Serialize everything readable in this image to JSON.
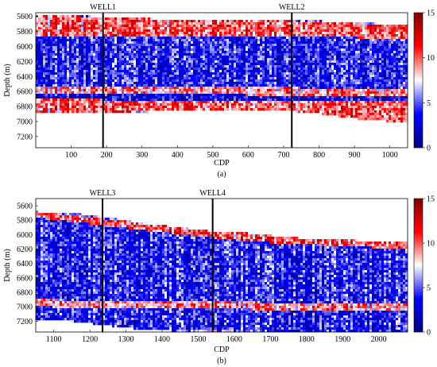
{
  "chart_data": [
    {
      "type": "heatmap",
      "panel_label": "(a)",
      "xlabel": "CDP",
      "ylabel": "Depth (m)",
      "xlim": [
        0,
        1050
      ],
      "ylim": [
        5550,
        7350
      ],
      "y_inverted": true,
      "xticks": [
        100,
        200,
        300,
        400,
        500,
        600,
        700,
        800,
        900,
        1000
      ],
      "yticks": [
        5600,
        5800,
        6000,
        6200,
        6400,
        6600,
        6800,
        7000,
        7200
      ],
      "colorbar": {
        "min": 0,
        "max": 15,
        "ticks": [
          0,
          5,
          10,
          15
        ],
        "colormap": [
          "#000080",
          "#0000ff",
          "#ffffff",
          "#ff0000",
          "#800000"
        ]
      },
      "wells": [
        {
          "name": "WELL1",
          "cdp": 190
        },
        {
          "name": "WELL2",
          "cdp": 723
        }
      ],
      "top_boundary": [
        [
          0,
          5590
        ],
        [
          200,
          5600
        ],
        [
          300,
          5620
        ],
        [
          400,
          5650
        ],
        [
          500,
          5660
        ],
        [
          600,
          5640
        ],
        [
          700,
          5640
        ],
        [
          800,
          5660
        ],
        [
          900,
          5680
        ],
        [
          1000,
          5700
        ],
        [
          1050,
          5720
        ]
      ],
      "bottom_boundary": [
        [
          0,
          6880
        ],
        [
          100,
          6890
        ],
        [
          200,
          6900
        ],
        [
          300,
          6870
        ],
        [
          400,
          6860
        ],
        [
          500,
          6850
        ],
        [
          600,
          6840
        ],
        [
          700,
          6850
        ],
        [
          800,
          6900
        ],
        [
          900,
          6960
        ],
        [
          1000,
          7000
        ],
        [
          1050,
          7020
        ]
      ],
      "layers": [
        {
          "top": [
            [
              0,
              5590
            ],
            [
              500,
              5620
            ],
            [
              1050,
              5720
            ]
          ],
          "bottom": [
            [
              0,
              5860
            ],
            [
              300,
              5860
            ],
            [
              700,
              5860
            ],
            [
              1050,
              5900
            ]
          ],
          "value": 10
        },
        {
          "top": [
            [
              0,
              5860
            ],
            [
              300,
              5860
            ],
            [
              700,
              5860
            ],
            [
              1050,
              5900
            ]
          ],
          "bottom": [
            [
              0,
              6520
            ],
            [
              400,
              6540
            ],
            [
              1050,
              6560
            ]
          ],
          "value": 4
        },
        {
          "top": [
            [
              0,
              6520
            ],
            [
              400,
              6540
            ],
            [
              1050,
              6560
            ]
          ],
          "bottom": [
            [
              0,
              6620
            ],
            [
              400,
              6640
            ],
            [
              1050,
              6660
            ]
          ],
          "value": 9
        },
        {
          "top": [
            [
              0,
              6620
            ],
            [
              400,
              6640
            ],
            [
              1050,
              6660
            ]
          ],
          "bottom": [
            [
              0,
              6700
            ],
            [
              400,
              6720
            ],
            [
              1050,
              6740
            ]
          ],
          "value": 3
        },
        {
          "top": [
            [
              0,
              6700
            ],
            [
              400,
              6720
            ],
            [
              1050,
              6740
            ]
          ],
          "bottom": [
            [
              0,
              6890
            ],
            [
              500,
              6850
            ],
            [
              1050,
              7020
            ]
          ],
          "value": 10
        }
      ]
    },
    {
      "type": "heatmap",
      "panel_label": "(b)",
      "xlabel": "CDP",
      "ylabel": "Depth (m)",
      "xlim": [
        1050,
        2080
      ],
      "ylim": [
        5500,
        7350
      ],
      "y_inverted": true,
      "xticks": [
        1100,
        1200,
        1300,
        1400,
        1500,
        1600,
        1700,
        1800,
        1900,
        2000
      ],
      "yticks": [
        5600,
        5800,
        6000,
        6200,
        6400,
        6600,
        6800,
        7000,
        7200
      ],
      "colorbar": {
        "min": 0,
        "max": 15,
        "ticks": [
          0,
          5,
          10,
          15
        ],
        "colormap": [
          "#000080",
          "#0000ff",
          "#ffffff",
          "#ff0000",
          "#800000"
        ]
      },
      "wells": [
        {
          "name": "WELL3",
          "cdp": 1235
        },
        {
          "name": "WELL4",
          "cdp": 1540
        }
      ],
      "top_boundary": [
        [
          1050,
          5680
        ],
        [
          1150,
          5700
        ],
        [
          1250,
          5760
        ],
        [
          1350,
          5840
        ],
        [
          1450,
          5900
        ],
        [
          1550,
          5960
        ],
        [
          1650,
          5980
        ],
        [
          1750,
          6040
        ],
        [
          1850,
          6060
        ],
        [
          1950,
          6080
        ],
        [
          2080,
          6100
        ]
      ],
      "bottom_boundary": [
        [
          1050,
          7180
        ],
        [
          1150,
          7200
        ],
        [
          1250,
          7260
        ],
        [
          1350,
          7320
        ],
        [
          1450,
          7340
        ],
        [
          1550,
          7350
        ],
        [
          2080,
          7350
        ]
      ],
      "layers": [
        {
          "top": [
            [
              1050,
              5680
            ],
            [
              1350,
              5840
            ],
            [
              1650,
              5980
            ],
            [
              2080,
              6100
            ]
          ],
          "bottom": [
            [
              1050,
              5760
            ],
            [
              1350,
              5940
            ],
            [
              1650,
              6100
            ],
            [
              2080,
              6200
            ]
          ],
          "value": 10
        },
        {
          "top": [
            [
              1050,
              5760
            ],
            [
              1350,
              5940
            ],
            [
              1650,
              6100
            ],
            [
              2080,
              6200
            ]
          ],
          "bottom": [
            [
              1050,
              6900
            ],
            [
              1350,
              6920
            ],
            [
              2080,
              6960
            ]
          ],
          "value": 4
        },
        {
          "top": [
            [
              1050,
              6900
            ],
            [
              1350,
              6920
            ],
            [
              2080,
              6960
            ]
          ],
          "bottom": [
            [
              1050,
              7000
            ],
            [
              1350,
              7020
            ],
            [
              2080,
              7060
            ]
          ],
          "value": 9
        },
        {
          "top": [
            [
              1050,
              7000
            ],
            [
              1350,
              7020
            ],
            [
              2080,
              7060
            ]
          ],
          "bottom": [
            [
              1050,
              7180
            ],
            [
              1350,
              7320
            ],
            [
              2080,
              7350
            ]
          ],
          "value": 4
        }
      ]
    }
  ]
}
